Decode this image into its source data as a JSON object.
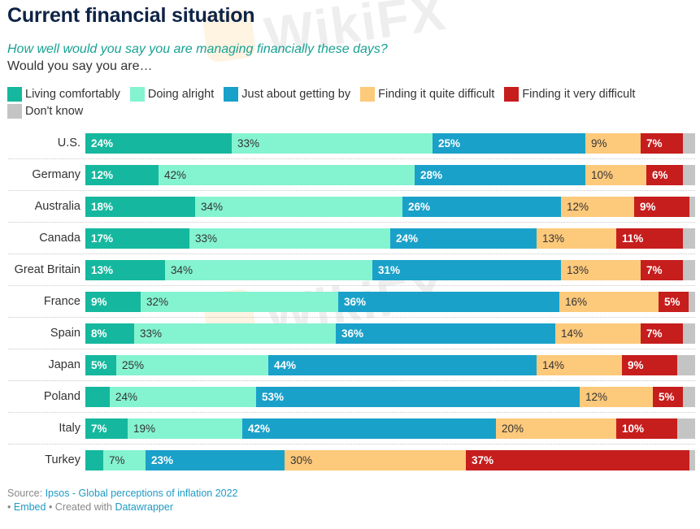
{
  "header": {
    "title": "Current financial situation",
    "question": "How well would you say you are managing financially these days?",
    "prompt": "Would you say you are…"
  },
  "watermark": {
    "text": "WikiFX"
  },
  "footer": {
    "source_prefix": "Source: ",
    "source_link": "Ipsos - Global perceptions of inflation 2022",
    "bullet1": "• ",
    "embed_link": "Embed",
    "created_prefix": " • Created with ",
    "datawrapper_link": "Datawrapper"
  },
  "chart_data": {
    "type": "bar",
    "orientation": "horizontal",
    "stacked": true,
    "title": "Current financial situation",
    "subtitle": "How well would you say you are managing financially these days? Would you say you are…",
    "xlabel": "",
    "ylabel": "",
    "unit": "%",
    "legend_position": "top",
    "grid": false,
    "categories": [
      "U.S.",
      "Germany",
      "Australia",
      "Canada",
      "Great Britain",
      "France",
      "Spain",
      "Japan",
      "Poland",
      "Italy",
      "Turkey"
    ],
    "series": [
      {
        "name": "Living comfortably",
        "color": "#15b89e",
        "label_style": "dark",
        "values": [
          24,
          12,
          18,
          17,
          13,
          9,
          8,
          5,
          4,
          7,
          3
        ]
      },
      {
        "name": "Doing alright",
        "color": "#84f3d0",
        "label_style": "light",
        "values": [
          33,
          42,
          34,
          33,
          34,
          32,
          33,
          25,
          24,
          19,
          7
        ]
      },
      {
        "name": "Just about getting by",
        "color": "#1aa1c9",
        "label_style": "dark",
        "values": [
          25,
          28,
          26,
          24,
          31,
          36,
          36,
          44,
          53,
          42,
          23
        ]
      },
      {
        "name": "Finding it quite difficult",
        "color": "#fdc97b",
        "label_style": "light",
        "values": [
          9,
          10,
          12,
          13,
          13,
          16,
          14,
          14,
          12,
          20,
          30
        ]
      },
      {
        "name": "Finding it very difficult",
        "color": "#c61d1d",
        "label_style": "dark",
        "values": [
          7,
          6,
          9,
          11,
          7,
          5,
          7,
          9,
          5,
          10,
          37
        ]
      },
      {
        "name": "Don't know",
        "color": "#c4c4c4",
        "label_style": "none",
        "values": [
          2,
          2,
          1,
          2,
          2,
          1,
          2,
          3,
          2,
          3,
          1
        ]
      }
    ],
    "hidden_labels_below": 5
  }
}
